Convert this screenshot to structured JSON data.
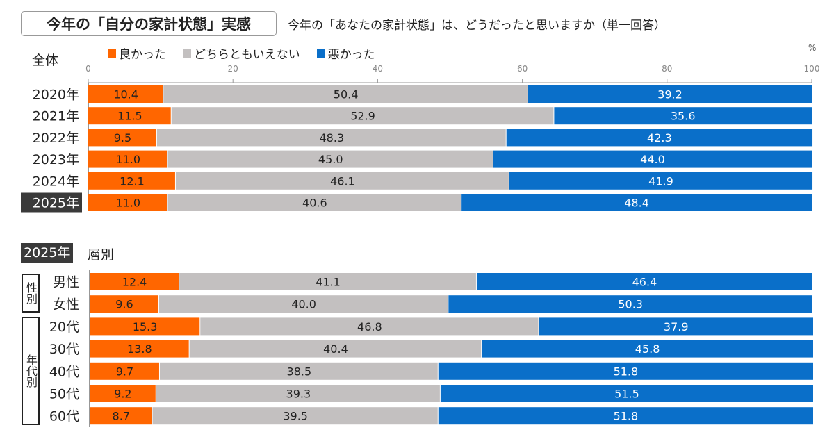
{
  "title": "今年の「自分の家計状態」実感",
  "subtitle": "今年の「あなたの家計状態」は、どうだったと思いますか（単一回答）",
  "colors": {
    "good": "#ff6600",
    "neutral": "#c3c0c0",
    "bad": "#0a6fc9"
  },
  "legend": [
    {
      "label": "良かった",
      "color": "#ff6600"
    },
    {
      "label": "どちらともいえない",
      "color": "#c3c0c0"
    },
    {
      "label": "悪かった",
      "color": "#0a6fc9"
    }
  ],
  "sections": {
    "overall_label": "全体",
    "breakdown_year": "2025年",
    "breakdown_label": "層別",
    "gender_group": "性別",
    "age_group": "年代別"
  },
  "chart_data": [
    {
      "type": "bar",
      "orientation": "horizontal",
      "stacked": true,
      "title": "全体",
      "unit": "%",
      "xlim": [
        0,
        100
      ],
      "ticks": [
        "0",
        "20",
        "40",
        "60",
        "80",
        "100"
      ],
      "categories": [
        "2020年",
        "2021年",
        "2022年",
        "2023年",
        "2024年",
        "2025年"
      ],
      "highlight": "2025年",
      "series": [
        {
          "name": "良かった",
          "values": [
            10.4,
            11.5,
            9.5,
            11.0,
            12.1,
            11.0
          ]
        },
        {
          "name": "どちらともいえない",
          "values": [
            50.4,
            52.9,
            48.3,
            45.0,
            46.1,
            40.6
          ]
        },
        {
          "name": "悪かった",
          "values": [
            39.2,
            35.6,
            42.3,
            44.0,
            41.9,
            48.4
          ]
        }
      ]
    },
    {
      "type": "bar",
      "orientation": "horizontal",
      "stacked": true,
      "title": "2025年 層別",
      "xlim": [
        0,
        100
      ],
      "categories": [
        "男性",
        "女性",
        "20代",
        "30代",
        "40代",
        "50代",
        "60代"
      ],
      "series": [
        {
          "name": "良かった",
          "values": [
            12.4,
            9.6,
            15.3,
            13.8,
            9.7,
            9.2,
            8.7
          ]
        },
        {
          "name": "どちらともいえない",
          "values": [
            41.1,
            40.0,
            46.8,
            40.4,
            38.5,
            39.3,
            39.5
          ]
        },
        {
          "name": "悪かった",
          "values": [
            46.4,
            50.3,
            37.9,
            45.8,
            51.8,
            51.5,
            51.8
          ]
        }
      ]
    }
  ]
}
